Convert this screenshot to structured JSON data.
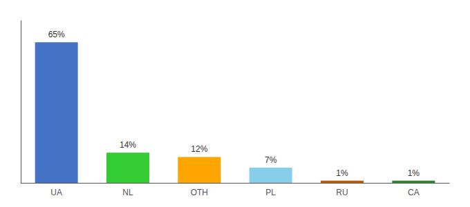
{
  "chart_data": {
    "type": "bar",
    "categories": [
      "UA",
      "NL",
      "OTH",
      "PL",
      "RU",
      "CA"
    ],
    "values": [
      65,
      14,
      12,
      7,
      1,
      1
    ],
    "value_labels": [
      "65%",
      "14%",
      "12%",
      "7%",
      "1%",
      "1%"
    ],
    "colors": [
      "#4472c4",
      "#33cc33",
      "#ffa500",
      "#87ceeb",
      "#c85a00",
      "#2d8a2d"
    ],
    "ylim": [
      0,
      75
    ],
    "data_labels": true,
    "tick_labels": "x",
    "grid": false
  }
}
